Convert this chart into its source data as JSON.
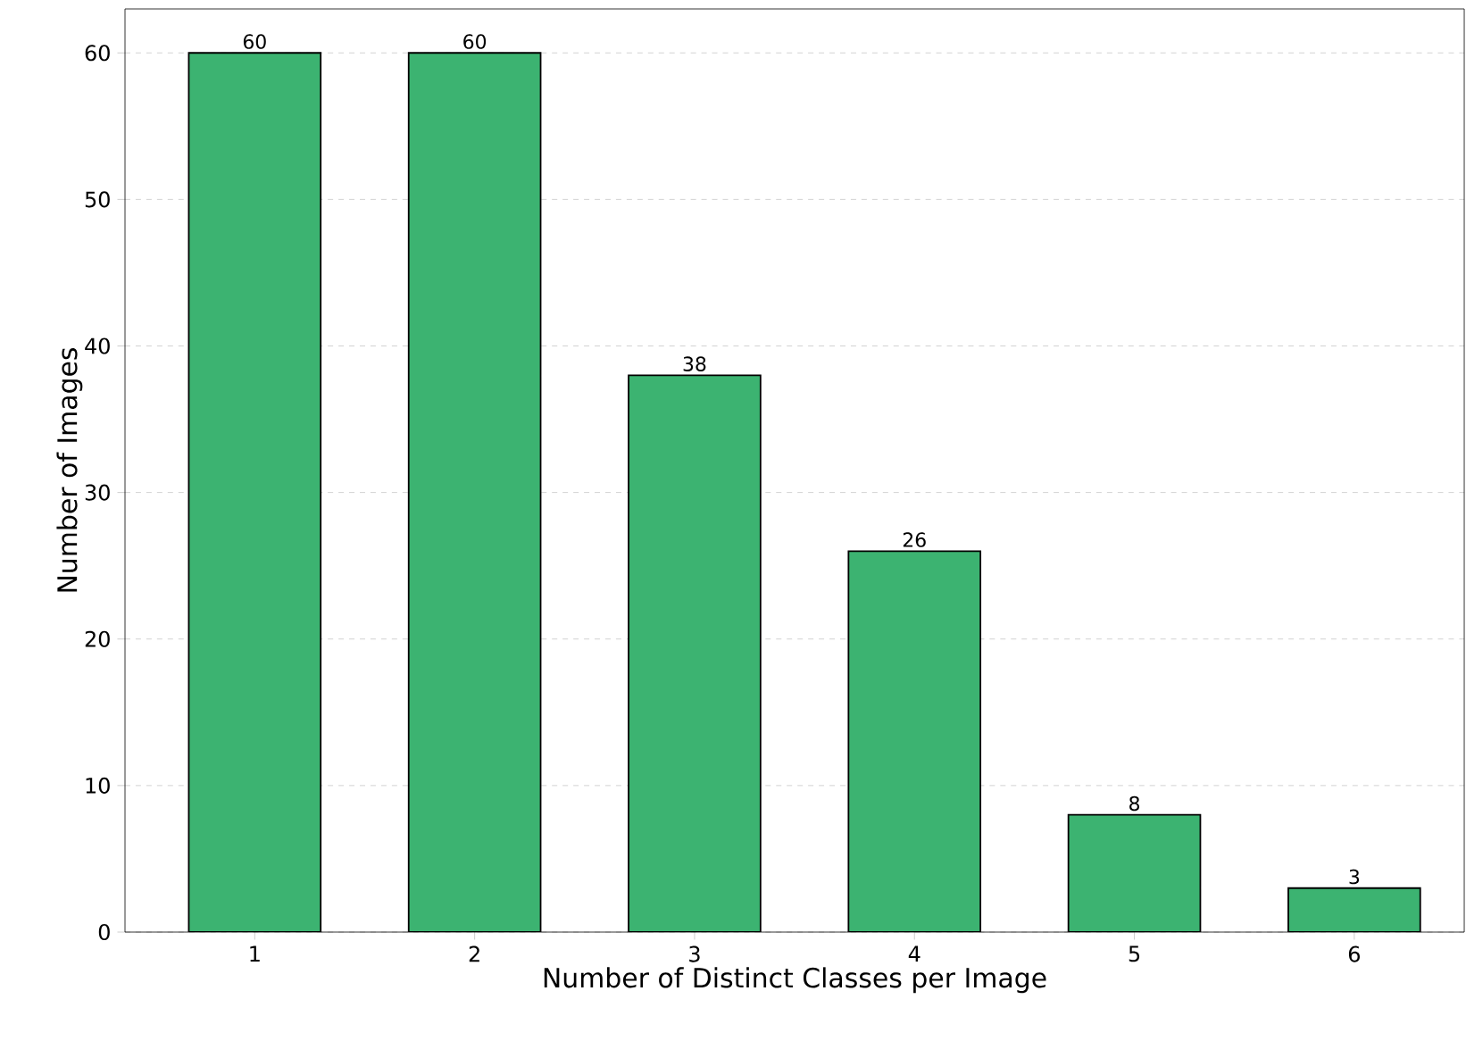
{
  "chart_data": {
    "type": "bar",
    "xlabel": "Number of Distinct Classes per Image",
    "ylabel": "Number of Images",
    "categories": [
      "1",
      "2",
      "3",
      "4",
      "5",
      "6"
    ],
    "values": [
      60,
      60,
      38,
      26,
      8,
      3
    ],
    "color": "#3cb371",
    "ylim": [
      0,
      63
    ],
    "yticks": [
      0,
      10,
      20,
      30,
      40,
      50,
      60
    ],
    "grid": "y",
    "data_labels": true
  }
}
